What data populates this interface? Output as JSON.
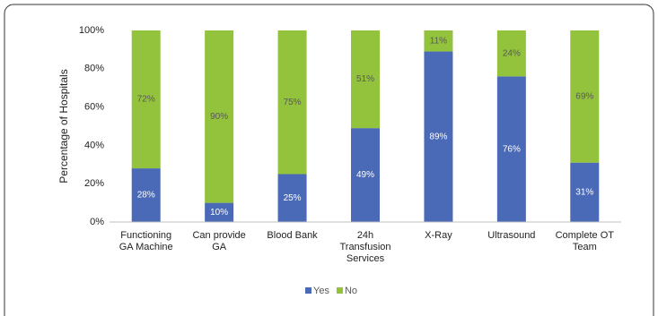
{
  "chart_data": {
    "type": "stacked_bar",
    "ylabel": "Percentage of Hospitals",
    "categories": [
      "Functioning GA Machine",
      "Can provide GA",
      "Blood Bank",
      "24h Transfusion Services",
      "X-Ray",
      "Ultrasound",
      "Complete OT Team"
    ],
    "series": [
      {
        "name": "Yes",
        "color": "#4a69b6",
        "values": [
          28,
          10,
          25,
          49,
          89,
          76,
          31
        ],
        "value_labels": [
          "28%",
          "10%",
          "25%",
          "49%",
          "89%",
          "76%",
          "31%"
        ]
      },
      {
        "name": "No",
        "color": "#93c23d",
        "values": [
          72,
          90,
          75,
          51,
          11,
          24,
          69
        ],
        "value_labels": [
          "72%",
          "90%",
          "75%",
          "51%",
          "11%",
          "24%",
          "69%"
        ]
      }
    ],
    "ylim": [
      0,
      100
    ],
    "yticks": [
      {
        "value": 0,
        "label": "0%"
      },
      {
        "value": 20,
        "label": "20%"
      },
      {
        "value": 40,
        "label": "40%"
      },
      {
        "value": 60,
        "label": "60%"
      },
      {
        "value": 80,
        "label": "80%"
      },
      {
        "value": 100,
        "label": "100%"
      }
    ],
    "grid": false,
    "legend": "bottom"
  }
}
